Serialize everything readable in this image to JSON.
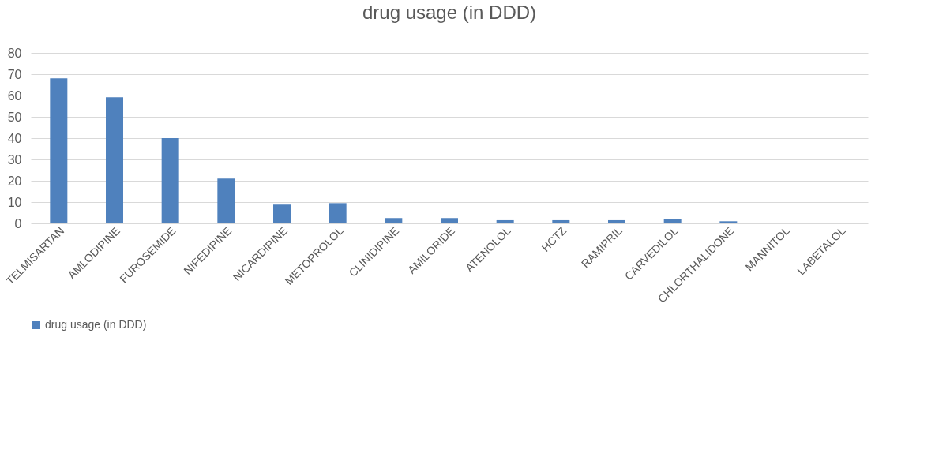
{
  "chart_data": {
    "type": "bar",
    "title": "drug usage (in DDD)",
    "categories": [
      "TELMISARTAN",
      "AMLODIPINE",
      "FUROSEMIDE",
      "NIFEDIPINE",
      "NICARDIPINE",
      "METOPROLOL",
      "CLINIDIPINE",
      "AMILORIDE",
      "ATENOLOL",
      "HCTZ",
      "RAMIPRIL",
      "CARVEDILOL",
      "CHLORTHALIDONE",
      "MANNITOL",
      "LABETALOL"
    ],
    "series": [
      {
        "name": "drug usage (in DDD)",
        "color": "#4f81bd",
        "values": [
          68.1,
          59.2,
          40,
          21,
          8.8,
          9.5,
          2.5,
          2.5,
          1.5,
          1.5,
          1.5,
          2.0,
          1.0,
          0,
          0
        ]
      }
    ],
    "ylim": [
      0,
      80
    ],
    "yticks": [
      0,
      10,
      20,
      30,
      40,
      50,
      60,
      70,
      80
    ],
    "grid": "y",
    "legend": "bottom"
  }
}
